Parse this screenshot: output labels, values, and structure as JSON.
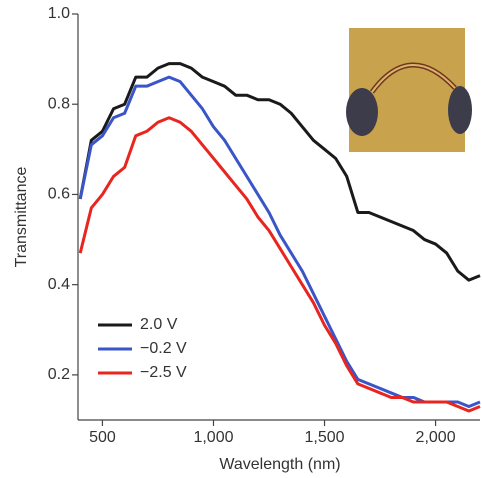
{
  "chart_data": {
    "type": "line",
    "x_label": "Wavelength (nm)",
    "y_label": "Transmittance",
    "x": [
      400,
      450,
      500,
      550,
      600,
      650,
      700,
      750,
      800,
      850,
      900,
      950,
      1000,
      1050,
      1100,
      1150,
      1200,
      1250,
      1300,
      1350,
      1400,
      1450,
      1500,
      1550,
      1600,
      1650,
      1700,
      1750,
      1800,
      1850,
      1900,
      1950,
      2000,
      2050,
      2100,
      2150,
      2200
    ],
    "series": [
      {
        "name": "2.0 V",
        "color": "#1a1a1a",
        "values": [
          0.59,
          0.72,
          0.74,
          0.79,
          0.8,
          0.86,
          0.86,
          0.88,
          0.89,
          0.89,
          0.88,
          0.86,
          0.85,
          0.84,
          0.82,
          0.82,
          0.81,
          0.81,
          0.8,
          0.78,
          0.75,
          0.72,
          0.7,
          0.68,
          0.64,
          0.56,
          0.56,
          0.55,
          0.54,
          0.53,
          0.52,
          0.5,
          0.49,
          0.47,
          0.43,
          0.41,
          0.42
        ]
      },
      {
        "name": "−0.2 V",
        "color": "#3a55c8",
        "values": [
          0.59,
          0.71,
          0.73,
          0.77,
          0.78,
          0.84,
          0.84,
          0.85,
          0.86,
          0.85,
          0.82,
          0.79,
          0.75,
          0.72,
          0.68,
          0.64,
          0.6,
          0.56,
          0.51,
          0.47,
          0.43,
          0.38,
          0.33,
          0.28,
          0.23,
          0.19,
          0.18,
          0.17,
          0.16,
          0.15,
          0.15,
          0.14,
          0.14,
          0.14,
          0.14,
          0.13,
          0.14
        ]
      },
      {
        "name": "−2.5 V",
        "color": "#e8251f",
        "values": [
          0.47,
          0.57,
          0.6,
          0.64,
          0.66,
          0.73,
          0.74,
          0.76,
          0.77,
          0.76,
          0.74,
          0.71,
          0.68,
          0.65,
          0.62,
          0.59,
          0.55,
          0.52,
          0.48,
          0.44,
          0.4,
          0.36,
          0.31,
          0.27,
          0.22,
          0.18,
          0.17,
          0.16,
          0.15,
          0.15,
          0.14,
          0.14,
          0.14,
          0.14,
          0.13,
          0.12,
          0.13
        ]
      }
    ],
    "xlim": [
      390,
      2200
    ],
    "xticks": [
      500,
      {
        "value": 1000,
        "label": "1,000"
      },
      {
        "value": 1500,
        "label": "1,500"
      },
      {
        "value": 2000,
        "label": "2,000"
      }
    ],
    "ylim": [
      0.1,
      1.0
    ],
    "yticks": [
      0.2,
      0.4,
      0.6,
      0.8,
      {
        "value": 1,
        "label": "1.0"
      }
    ],
    "legend": "lower left",
    "grid": false
  }
}
